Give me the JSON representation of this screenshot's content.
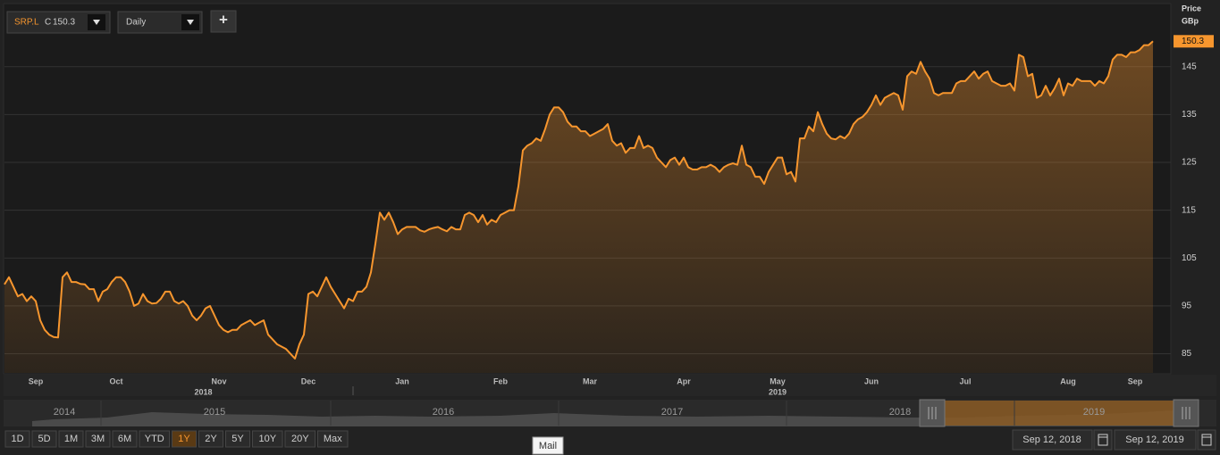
{
  "toolbar": {
    "symbol": "SRP.L",
    "quote_prefix": "C",
    "interval": "Daily",
    "add_button": "+"
  },
  "chart_data": {
    "type": "line",
    "y_label": "Price",
    "y_unit": "GBp",
    "color": "#f7962e",
    "fill_area": true,
    "grid": true,
    "y_axis_side": "right",
    "last_value_tag": true,
    "categories": [
      null,
      null,
      null,
      null,
      null,
      null,
      null,
      "Sep",
      null,
      null,
      null,
      null,
      null,
      null,
      null,
      null,
      null,
      null,
      null,
      null,
      null,
      null,
      null,
      null,
      null,
      "Oct",
      null,
      null,
      null,
      null,
      null,
      null,
      null,
      null,
      null,
      null,
      null,
      null,
      null,
      null,
      null,
      null,
      null,
      null,
      null,
      null,
      null,
      null,
      "Nov",
      null,
      null,
      null,
      null,
      null,
      null,
      null,
      null,
      null,
      null,
      null,
      null,
      null,
      null,
      null,
      null,
      null,
      null,
      null,
      "Dec",
      null,
      null,
      null,
      null,
      null,
      null,
      null,
      null,
      null,
      null,
      null,
      null,
      null,
      null,
      null,
      null,
      null,
      null,
      null,
      null,
      "Jan",
      null,
      null,
      null,
      null,
      null,
      null,
      null,
      null,
      null,
      null,
      null,
      null,
      null,
      null,
      null,
      null,
      null,
      null,
      null,
      null,
      null,
      "Feb",
      null,
      null,
      null,
      null,
      null,
      null,
      null,
      null,
      null,
      null,
      null,
      null,
      null,
      null,
      null,
      null,
      null,
      null,
      null,
      "Mar",
      null,
      null,
      null,
      null,
      null,
      null,
      null,
      null,
      null,
      null,
      null,
      null,
      null,
      null,
      null,
      null,
      null,
      null,
      null,
      null,
      "Apr",
      null,
      null,
      null,
      null,
      null,
      null,
      null,
      null,
      null,
      null,
      null,
      null,
      null,
      null,
      null,
      null,
      null,
      null,
      null,
      null,
      "May",
      null,
      null,
      null,
      null,
      null,
      null,
      null,
      null,
      null,
      null,
      null,
      null,
      null,
      null,
      null,
      null,
      null,
      null,
      null,
      null,
      "Jun",
      null,
      null,
      null,
      null,
      null,
      null,
      null,
      null,
      null,
      null,
      null,
      null,
      null,
      null,
      null,
      null,
      null,
      null,
      null,
      null,
      "Jul",
      null,
      null,
      null,
      null,
      null,
      null,
      null,
      null,
      null,
      null,
      null,
      null,
      null,
      null,
      null,
      null,
      null,
      null,
      null,
      null,
      null,
      null,
      "Aug",
      null,
      null,
      null,
      null,
      null,
      null,
      null,
      null,
      null,
      null,
      null,
      null,
      null,
      null,
      "Sep",
      null,
      null,
      null,
      null
    ],
    "values": [
      99.5,
      101,
      99,
      97,
      97.5,
      96,
      97,
      96,
      92,
      90,
      89,
      88.5,
      88.4,
      101,
      102,
      100,
      100,
      99.6,
      99.5,
      98.5,
      98.5,
      96,
      98,
      98.5,
      100,
      101,
      101,
      100,
      98,
      95,
      95.5,
      97.5,
      96,
      95.5,
      95.6,
      96.5,
      98,
      98,
      96,
      95.5,
      96,
      95,
      93,
      92,
      93,
      94.5,
      95,
      93,
      91,
      90,
      89.5,
      90,
      90,
      91,
      91.5,
      92,
      91,
      91.5,
      92,
      89,
      88,
      87,
      86.5,
      86,
      85,
      84,
      87,
      89,
      97.5,
      98,
      97,
      99,
      101,
      99,
      97.5,
      96,
      94.5,
      96.5,
      96,
      98,
      98,
      99,
      102,
      108,
      114.5,
      113,
      114.5,
      112.5,
      110,
      111,
      111.5,
      111.5,
      111.5,
      110.8,
      110.5,
      111,
      111.3,
      111.5,
      111,
      110.6,
      111.5,
      111,
      111,
      114,
      114.5,
      114,
      112.5,
      114,
      112,
      113,
      112.5,
      114,
      114.5,
      115,
      115,
      120,
      127.5,
      128.5,
      129,
      130,
      129.5,
      132,
      135,
      136.5,
      136.5,
      135.5,
      133.5,
      132.5,
      132.5,
      131.5,
      131.5,
      130.5,
      131,
      131.5,
      132,
      133,
      129.5,
      128.5,
      129,
      127,
      128,
      128,
      130.5,
      128,
      128.5,
      128,
      126,
      125,
      124,
      125.5,
      126,
      124.5,
      126,
      124,
      123.5,
      123.5,
      124,
      124,
      124.5,
      124,
      123,
      124,
      124.5,
      124.8,
      124.5,
      128.5,
      124.5,
      124,
      122,
      122,
      120.5,
      123,
      124.5,
      126,
      126,
      122.5,
      123,
      121,
      130,
      130,
      132.5,
      131.5,
      135.5,
      133,
      131,
      130,
      129.8,
      130.5,
      130,
      131,
      133,
      134,
      134.5,
      135.5,
      137,
      139,
      137,
      138.5,
      139,
      139.5,
      139,
      136,
      143,
      144,
      143.5,
      146,
      144,
      142.5,
      139.5,
      139,
      139.5,
      139.5,
      139.5,
      141.5,
      142,
      142,
      143,
      144,
      142.5,
      143.5,
      144,
      142,
      141.5,
      141,
      141,
      141.5,
      140,
      147.5,
      147,
      143,
      143.5,
      138.5,
      139,
      141,
      139,
      140.5,
      142.5,
      139,
      141.5,
      141,
      142.5,
      142,
      142,
      142,
      141,
      142,
      141.5,
      143,
      146.5,
      147.5,
      147.5,
      147,
      148,
      148,
      148.5,
      149.5,
      149.5,
      150.3
    ],
    "x_year_labels": [
      "2018",
      "2019"
    ],
    "ylim": [
      81,
      158
    ],
    "yticks": [
      85,
      95,
      105,
      115,
      125,
      135,
      145
    ]
  },
  "navigator": {
    "years": [
      "2014",
      "2015",
      "2016",
      "2017",
      "2018",
      "2019"
    ]
  },
  "range_buttons": {
    "labels": [
      "1D",
      "5D",
      "1M",
      "3M",
      "6M",
      "YTD",
      "1Y",
      "2Y",
      "5Y",
      "10Y",
      "20Y",
      "Max"
    ],
    "active": "1Y"
  },
  "date_range": {
    "from": "Sep 12, 2018",
    "to": "Sep 12, 2019"
  },
  "tooltip": "Mail"
}
